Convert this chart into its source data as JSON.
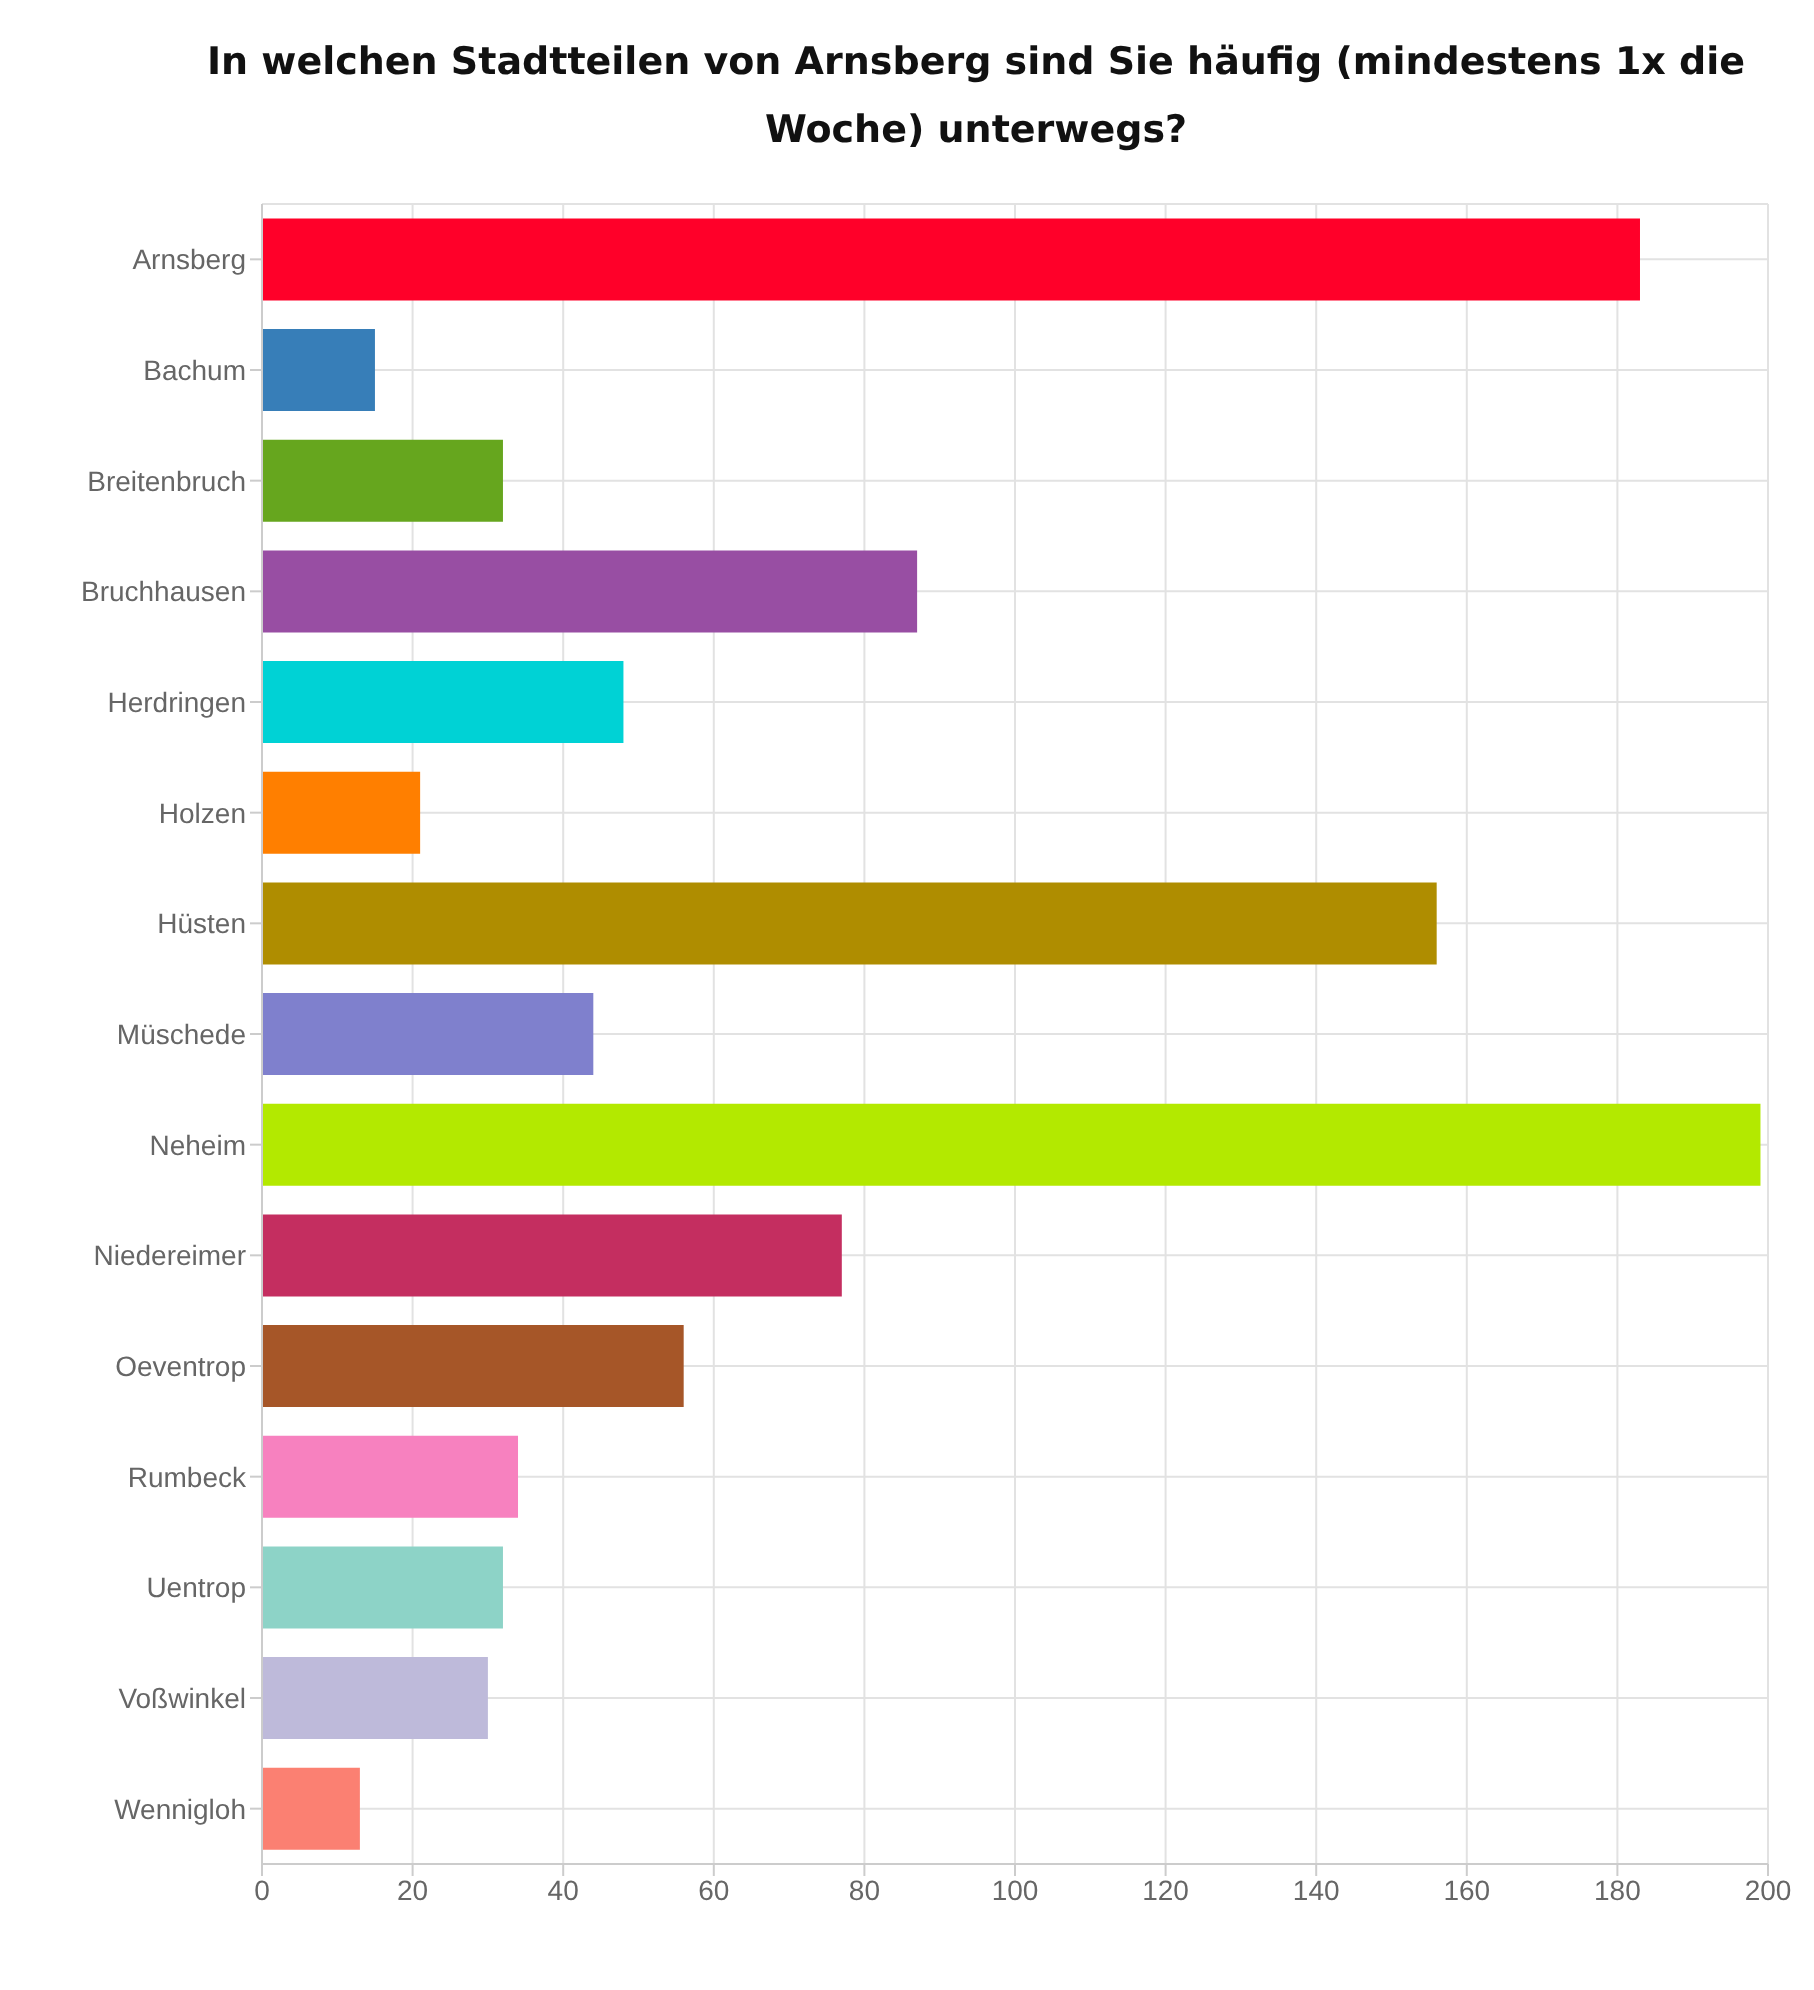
{
  "chart_data": {
    "type": "bar",
    "orientation": "horizontal",
    "title": "In welchen Stadtteilen von Arnsberg sind Sie häufig (mindestens 1x die Woche) unterwegs?",
    "categories": [
      "Arnsberg",
      "Bachum",
      "Breitenbruch",
      "Bruchhausen",
      "Herdringen",
      "Holzen",
      "Hüsten",
      "Müschede",
      "Neheim",
      "Niedereimer",
      "Oeventrop",
      "Rumbeck",
      "Uentrop",
      "Voßwinkel",
      "Wennigloh"
    ],
    "values": [
      183,
      15,
      32,
      87,
      48,
      21,
      156,
      44,
      199,
      77,
      56,
      34,
      32,
      30,
      13
    ],
    "colors": [
      "#ff0029",
      "#377eb8",
      "#66a61e",
      "#984ea3",
      "#00d2d5",
      "#ff7f00",
      "#af8d00",
      "#7f80cd",
      "#b3e900",
      "#c42e60",
      "#a65628",
      "#f781bf",
      "#8dd3c7",
      "#bebada",
      "#fb8072"
    ],
    "xlim": [
      0,
      200
    ],
    "xticks": [
      0,
      20,
      40,
      60,
      80,
      100,
      120,
      140,
      160,
      180,
      200
    ],
    "grid": true
  }
}
